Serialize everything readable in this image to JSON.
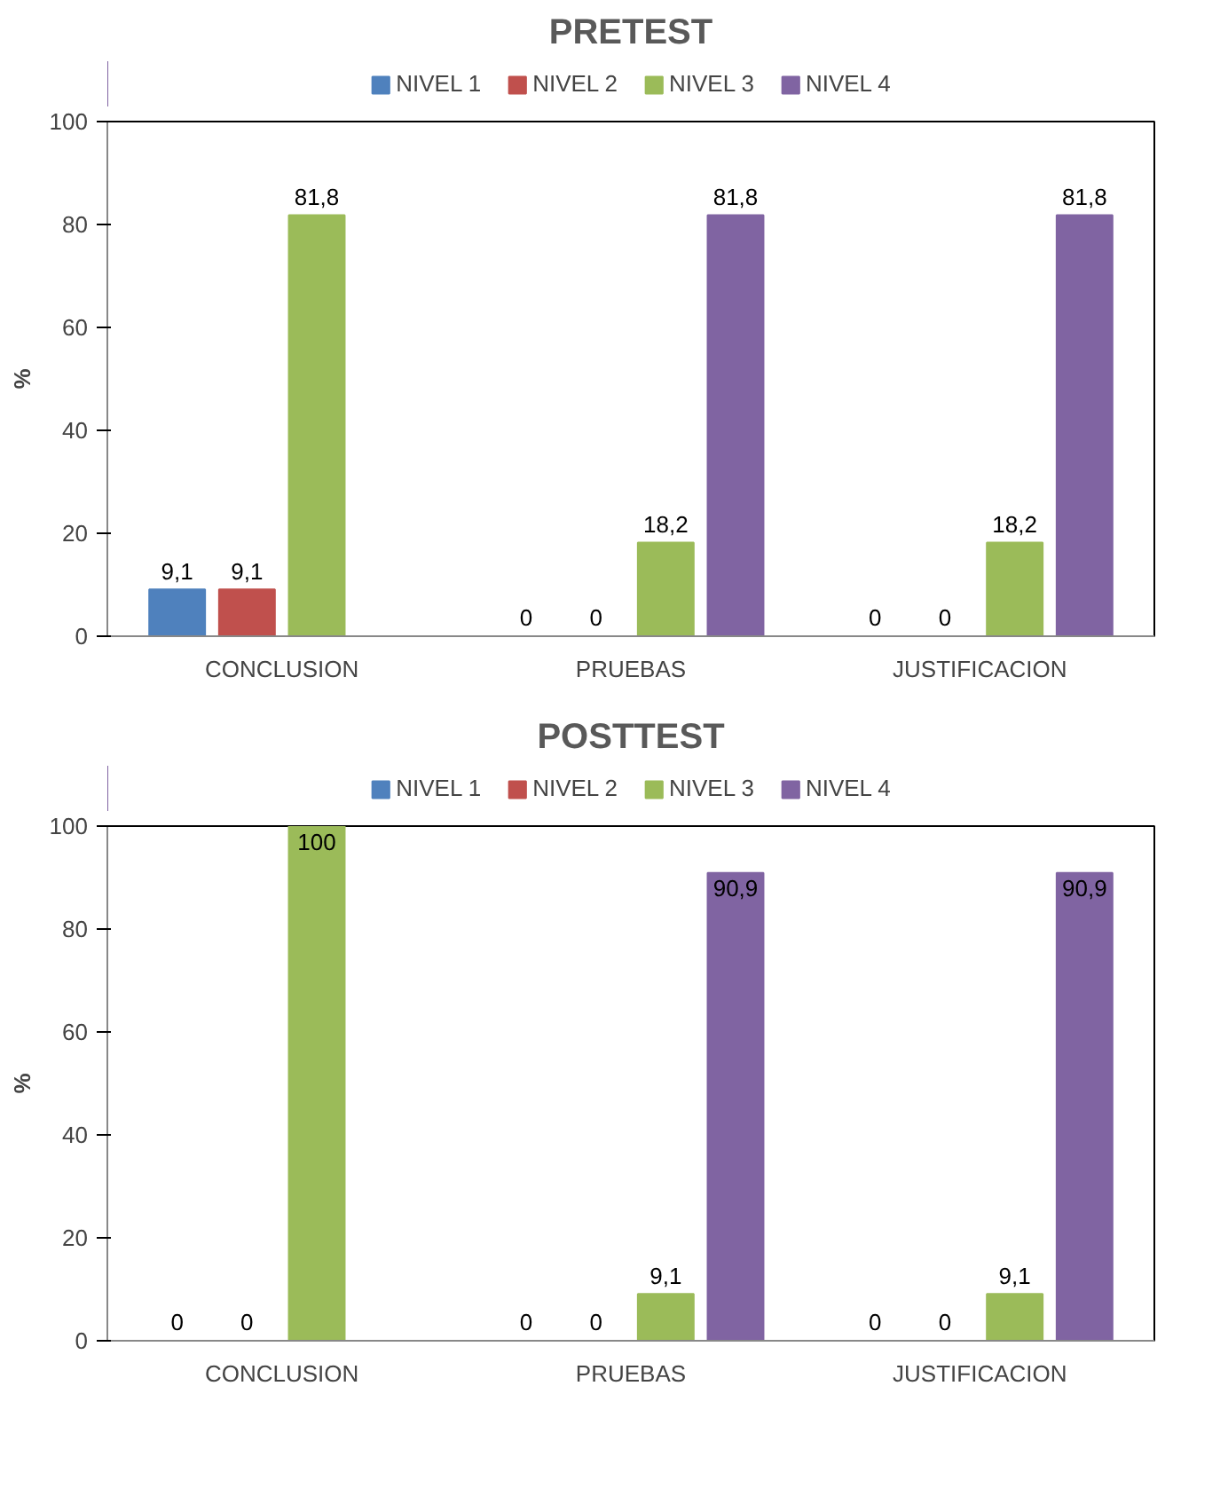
{
  "chart_data": [
    {
      "type": "bar",
      "title": "PRETEST",
      "ylabel": "%",
      "categories": [
        "CONCLUSION",
        "PRUEBAS",
        "JUSTIFICACION"
      ],
      "ylim": [
        0,
        100
      ],
      "yticks": [
        0,
        20,
        40,
        60,
        80,
        100
      ],
      "grid": false,
      "legend": "top",
      "series": [
        {
          "name": "NIVEL 1",
          "color": "#4f81bd",
          "values": [
            9.1,
            0,
            0
          ],
          "value_labels": [
            "9,1",
            "0",
            "0"
          ]
        },
        {
          "name": "NIVEL 2",
          "color": "#c0504d",
          "values": [
            9.1,
            0,
            0
          ],
          "value_labels": [
            "9,1",
            "0",
            "0"
          ]
        },
        {
          "name": "NIVEL 3",
          "color": "#9bbb59",
          "values": [
            81.8,
            18.2,
            18.2
          ],
          "value_labels": [
            "81,8",
            "18,2",
            "18,2"
          ]
        },
        {
          "name": "NIVEL 4",
          "color": "#8064a2",
          "values": [
            0,
            81.8,
            81.8
          ],
          "value_labels": [
            null,
            "81,8",
            "81,8"
          ]
        }
      ]
    },
    {
      "type": "bar",
      "title": "POSTTEST",
      "ylabel": "%",
      "categories": [
        "CONCLUSION",
        "PRUEBAS",
        "JUSTIFICACION"
      ],
      "ylim": [
        0,
        100
      ],
      "yticks": [
        0,
        20,
        40,
        60,
        80,
        100
      ],
      "grid": false,
      "legend": "top",
      "series": [
        {
          "name": "NIVEL 1",
          "color": "#4f81bd",
          "values": [
            0,
            0,
            0
          ],
          "value_labels": [
            "0",
            "0",
            "0"
          ]
        },
        {
          "name": "NIVEL 2",
          "color": "#c0504d",
          "values": [
            0,
            0,
            0
          ],
          "value_labels": [
            "0",
            "0",
            "0"
          ]
        },
        {
          "name": "NIVEL 3",
          "color": "#9bbb59",
          "values": [
            100,
            9.1,
            9.1
          ],
          "value_labels": [
            "100",
            "9,1",
            "9,1"
          ]
        },
        {
          "name": "NIVEL 4",
          "color": "#8064a2",
          "values": [
            0,
            90.9,
            90.9
          ],
          "value_labels": [
            null,
            "90,9",
            "90,9"
          ]
        }
      ]
    }
  ]
}
